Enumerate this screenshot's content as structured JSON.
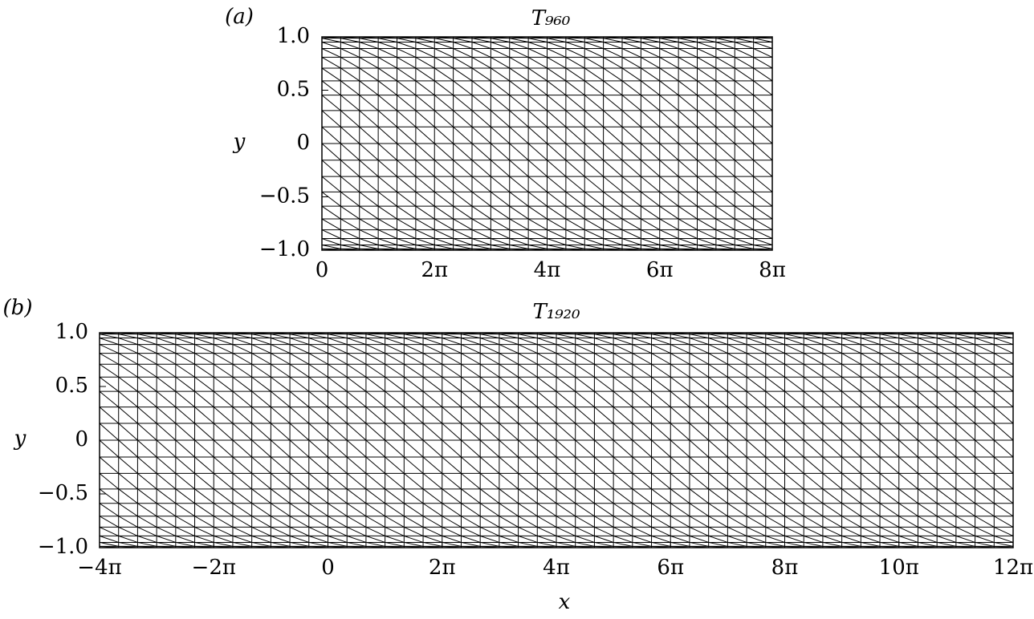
{
  "chart_data": [
    {
      "type": "mesh",
      "panel": "(a)",
      "title": "T₉₆₀",
      "ylabel": "y",
      "xlim": [
        0,
        25.1327
      ],
      "ylim": [
        -1,
        1
      ],
      "xticks": [
        0,
        {
          "value": 6.2832,
          "label": "2π"
        },
        {
          "value": 12.5664,
          "label": "4π"
        },
        {
          "value": 18.8496,
          "label": "6π"
        },
        {
          "value": 25.1327,
          "label": "8π"
        }
      ],
      "yticks": [
        {
          "value": -1,
          "label": "−1.0"
        },
        {
          "value": -0.5,
          "label": "−0.5"
        },
        0,
        0.5,
        {
          "value": 1,
          "label": "1.0"
        }
      ],
      "nx": 24,
      "ny": 20,
      "color": "#000000"
    },
    {
      "type": "mesh",
      "panel": "(b)",
      "title": "T₁₉₂₀",
      "ylabel": "y",
      "xlabel": "x",
      "xlim": [
        -12.5664,
        37.6991
      ],
      "ylim": [
        -1,
        1
      ],
      "xticks": [
        {
          "value": -12.5664,
          "label": "−4π"
        },
        {
          "value": -6.2832,
          "label": "−2π"
        },
        0,
        {
          "value": 6.2832,
          "label": "2π"
        },
        {
          "value": 12.5664,
          "label": "4π"
        },
        {
          "value": 18.8496,
          "label": "6π"
        },
        {
          "value": 25.1327,
          "label": "8π"
        },
        {
          "value": 31.4159,
          "label": "10π"
        },
        {
          "value": 37.6991,
          "label": "12π"
        }
      ],
      "yticks": [
        {
          "value": -1,
          "label": "−1.0"
        },
        {
          "value": -0.5,
          "label": "−0.5"
        },
        0,
        0.5,
        {
          "value": 1,
          "label": "1.0"
        }
      ],
      "nx": 48,
      "ny": 20,
      "color": "#000000"
    }
  ]
}
